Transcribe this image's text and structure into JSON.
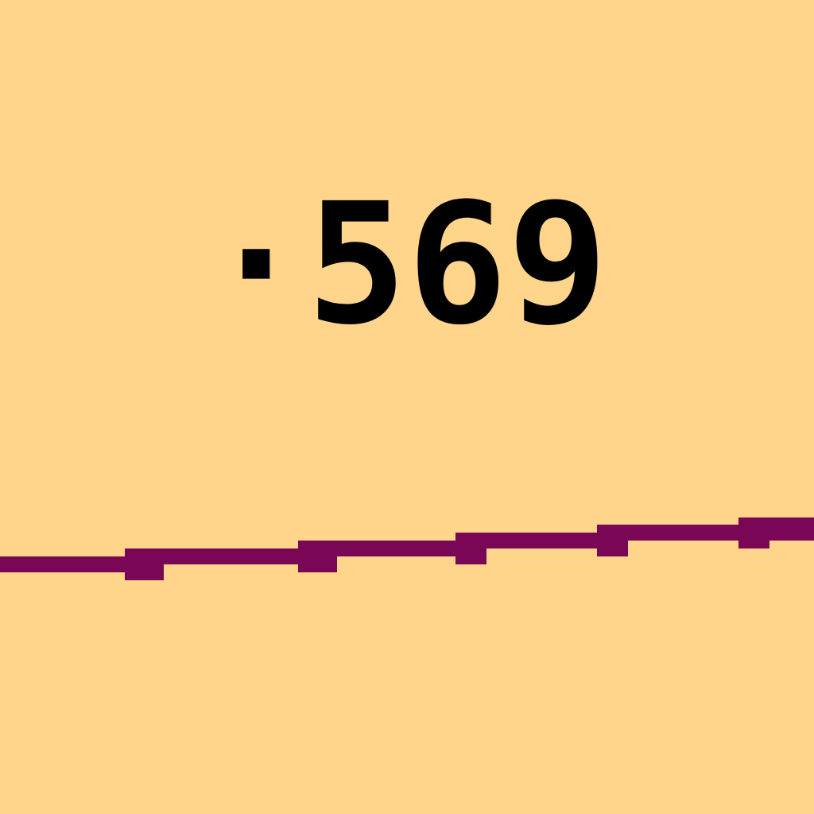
{
  "value_label": "·569",
  "colors": {
    "background": "#FFD48B",
    "text": "#000000",
    "line": "#7A0755"
  }
}
